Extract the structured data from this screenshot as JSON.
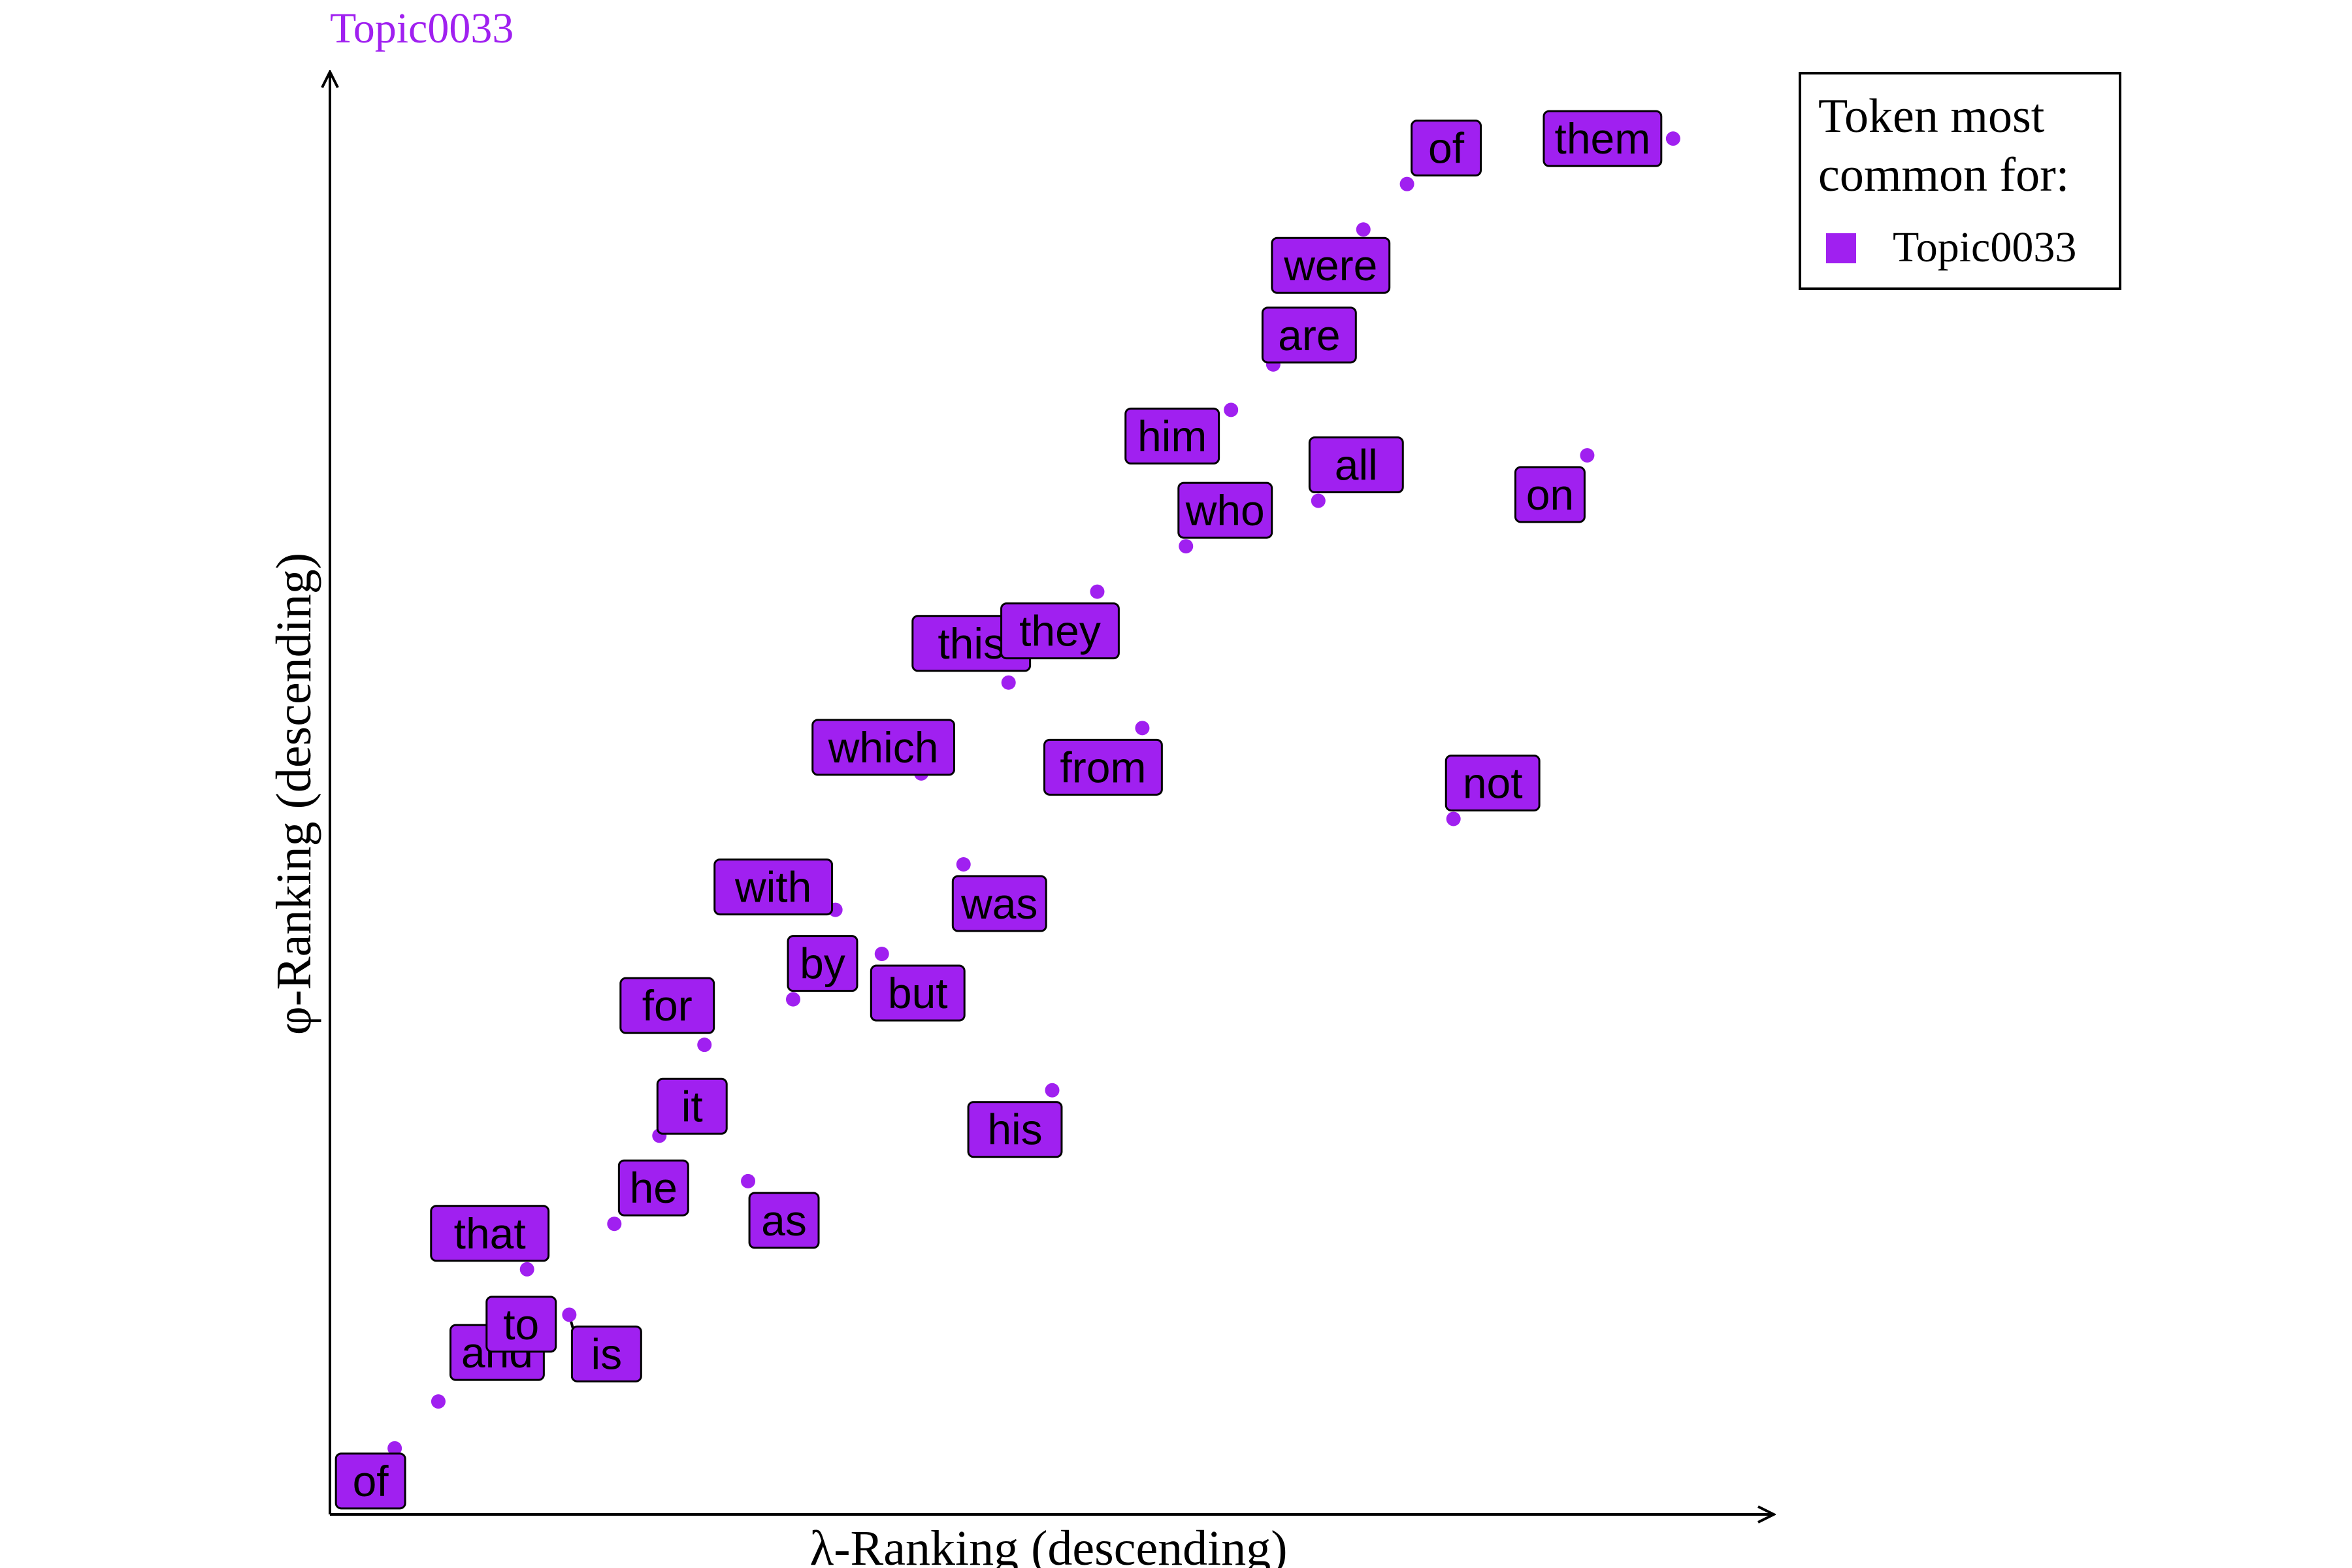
{
  "chart_data": {
    "type": "scatter",
    "title": "Topic0033",
    "xlabel": "λ-Ranking (descending)",
    "ylabel": "φ-Ranking (descending)",
    "xlim": [
      0,
      100
    ],
    "ylim": [
      0,
      100
    ],
    "grid": false,
    "legend": {
      "title_lines": [
        "Token most",
        "common for:"
      ],
      "entries": [
        {
          "label": "Topic0033",
          "color": "#A020F0"
        }
      ],
      "placement": "top-right"
    },
    "series": [
      {
        "name": "Topic0033",
        "color": "#A020F0",
        "points": [
          {
            "token": "of",
            "x": 4.6,
            "y": 4.8
          },
          {
            "token": "and",
            "x": 7.7,
            "y": 8.2
          },
          {
            "token": "to",
            "x": 10.8,
            "y": 11.2
          },
          {
            "token": "is",
            "x": 17.0,
            "y": 14.5
          },
          {
            "token": "that",
            "x": 14.0,
            "y": 17.8
          },
          {
            "token": "he",
            "x": 20.2,
            "y": 21.1
          },
          {
            "token": "as",
            "x": 29.7,
            "y": 24.2
          },
          {
            "token": "it",
            "x": 23.4,
            "y": 27.5
          },
          {
            "token": "his",
            "x": 51.3,
            "y": 30.8
          },
          {
            "token": "for",
            "x": 26.6,
            "y": 34.1
          },
          {
            "token": "by",
            "x": 32.9,
            "y": 37.4
          },
          {
            "token": "but",
            "x": 39.2,
            "y": 40.7
          },
          {
            "token": "with",
            "x": 35.9,
            "y": 43.9
          },
          {
            "token": "was",
            "x": 45.0,
            "y": 47.2
          },
          {
            "token": "not",
            "x": 79.8,
            "y": 50.5
          },
          {
            "token": "which",
            "x": 42.0,
            "y": 53.8
          },
          {
            "token": "from",
            "x": 57.7,
            "y": 57.1
          },
          {
            "token": "this",
            "x": 48.2,
            "y": 60.4
          },
          {
            "token": "they",
            "x": 54.5,
            "y": 67.0
          },
          {
            "token": "who",
            "x": 60.8,
            "y": 70.3
          },
          {
            "token": "all",
            "x": 70.2,
            "y": 73.6
          },
          {
            "token": "on",
            "x": 89.3,
            "y": 76.9
          },
          {
            "token": "him",
            "x": 64.0,
            "y": 80.2
          },
          {
            "token": "are",
            "x": 67.0,
            "y": 83.5
          },
          {
            "token": "were",
            "x": 73.4,
            "y": 93.3
          },
          {
            "token": "of",
            "x": 76.5,
            "y": 96.6
          },
          {
            "token": "them",
            "x": 95.4,
            "y": 99.9
          }
        ]
      }
    ]
  }
}
